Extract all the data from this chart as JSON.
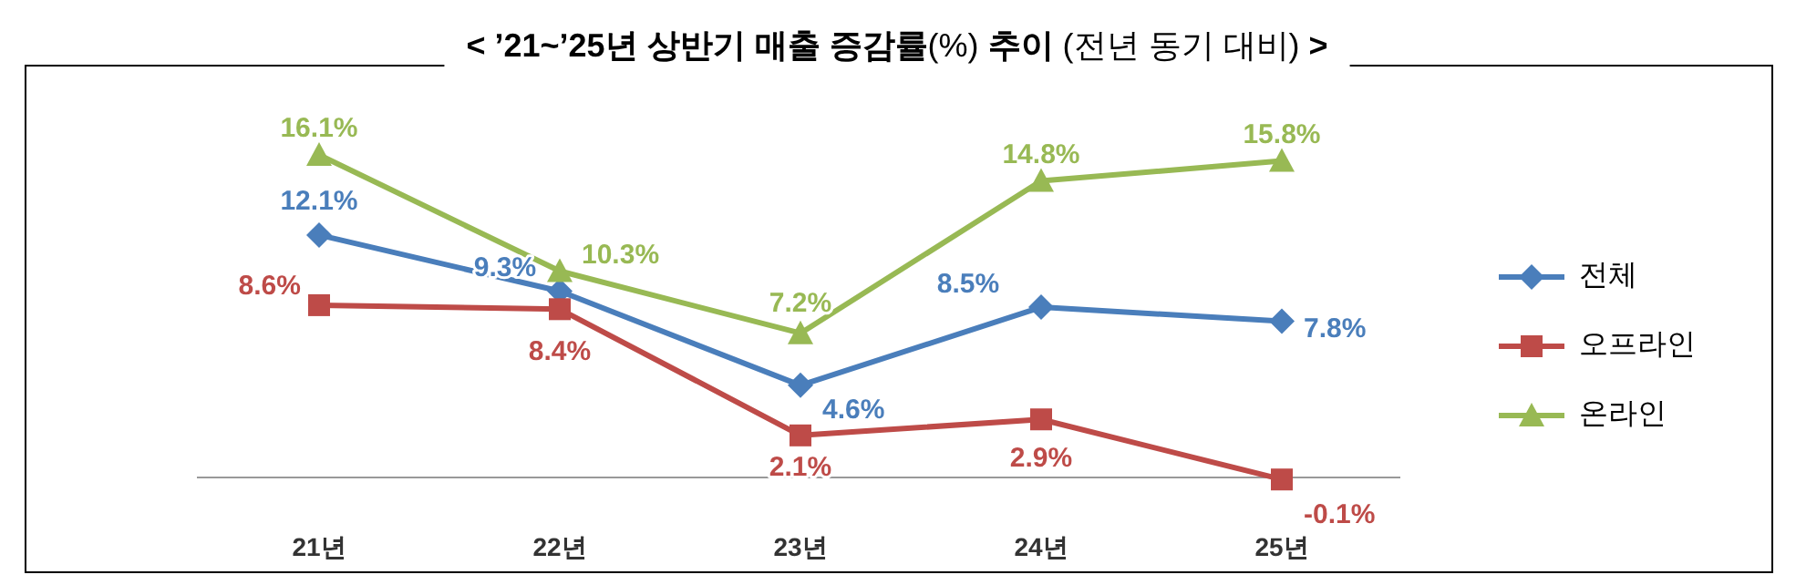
{
  "chart_data": {
    "type": "line",
    "title": "**< ’21~’25년 상반기 매출 증감률**(%) **추이** (전년 동기 대비) **>**",
    "categories": [
      "21년",
      "22년",
      "23년",
      "24년",
      "25년"
    ],
    "series": [
      {
        "name": "전체",
        "color": "#4a7ebb",
        "marker": "diamond",
        "values": [
          12.1,
          9.3,
          4.6,
          8.5,
          7.8
        ],
        "value_labels": [
          "12.1%",
          "9.3%",
          "4.6%",
          "8.5%",
          "7.8%"
        ]
      },
      {
        "name": "오프라인",
        "color": "#be4b48",
        "marker": "square",
        "values": [
          8.6,
          8.4,
          2.1,
          2.9,
          -0.1
        ],
        "value_labels": [
          "8.6%",
          "8.4%",
          "2.1%",
          "2.9%",
          "-0.1%"
        ]
      },
      {
        "name": "온라인",
        "color": "#98b954",
        "marker": "triangle",
        "values": [
          16.1,
          10.3,
          7.2,
          14.8,
          15.8
        ],
        "value_labels": [
          "16.1%",
          "10.3%",
          "7.2%",
          "14.8%",
          "15.8%"
        ]
      }
    ],
    "legend": "right"
  }
}
